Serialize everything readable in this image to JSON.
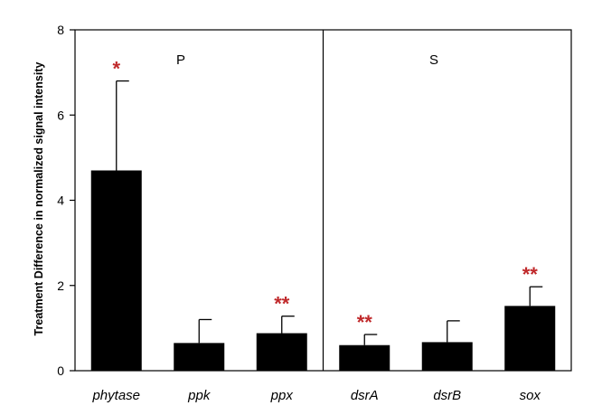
{
  "chart_data": {
    "type": "bar",
    "title": "",
    "xlabel": "",
    "ylabel": "Treatment Difference in normalized signal intensity",
    "ylim": [
      0,
      8
    ],
    "yticks": [
      0,
      2,
      4,
      6,
      8
    ],
    "grid": false,
    "legend": "none",
    "bar_color": "#000000",
    "significance_color": "#c0292b",
    "categories": [
      "phytase",
      "ppk",
      "ppx",
      "dsrA",
      "dsrB",
      "sox"
    ],
    "values": [
      4.7,
      0.65,
      0.88,
      0.6,
      0.67,
      1.52
    ],
    "error_upper": [
      2.1,
      0.55,
      0.4,
      0.25,
      0.5,
      0.45
    ],
    "significance": [
      "*",
      "",
      "**",
      "**",
      "",
      "**"
    ],
    "panels": [
      {
        "label": "P",
        "categories": [
          "phytase",
          "ppk",
          "ppx"
        ]
      },
      {
        "label": "S",
        "categories": [
          "dsrA",
          "dsrB",
          "sox"
        ]
      }
    ]
  }
}
